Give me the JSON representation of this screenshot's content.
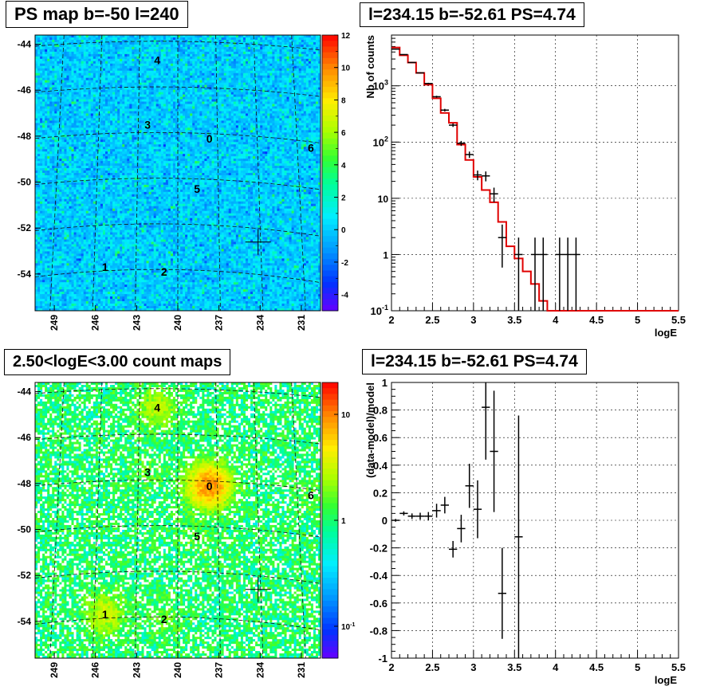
{
  "chart_data": [
    {
      "id": "ps_map",
      "type": "heatmap",
      "title": "PS map b=-50 l=240",
      "y_ticks": [
        -44,
        -46,
        -48,
        -50,
        -52,
        -54
      ],
      "x_ticks": [
        249,
        246,
        243,
        240,
        237,
        234,
        231
      ],
      "colorbar": {
        "scale": "linear",
        "range": [
          -5,
          12
        ],
        "ticks": [
          12,
          10,
          8,
          6,
          4,
          2,
          0,
          -2,
          -4
        ]
      },
      "sources": [
        {
          "label": "4",
          "l": 241.5,
          "b": -44.7
        },
        {
          "label": "3",
          "l": 242.2,
          "b": -47.5
        },
        {
          "label": "0",
          "l": 237.7,
          "b": -48.1
        },
        {
          "label": "6",
          "l": 230.3,
          "b": -48.5
        },
        {
          "label": "5",
          "l": 238.6,
          "b": -50.3
        },
        {
          "label": "1",
          "l": 245.3,
          "b": -53.7
        },
        {
          "label": "2",
          "l": 241.0,
          "b": -53.9
        }
      ],
      "marker": {
        "l": 234.15,
        "b": -52.61
      }
    },
    {
      "id": "spectrum",
      "type": "line",
      "title": "l=234.15 b=-52.61 PS=4.74",
      "xlabel": "logE",
      "ylabel": "Nb of counts",
      "yscale": "log",
      "xlim": [
        2,
        5.5
      ],
      "ylim": [
        0.1,
        8000
      ],
      "x_ticks": [
        2,
        2.5,
        3,
        3.5,
        4,
        4.5,
        5,
        5.5
      ],
      "y_ticks": [
        {
          "v": 0.1,
          "label": "10^-1"
        },
        {
          "v": 1,
          "label": "1"
        },
        {
          "v": 10,
          "label": "10"
        },
        {
          "v": 100,
          "label": "10^2"
        },
        {
          "v": 1000,
          "label": "10^3"
        }
      ],
      "data_points": [
        {
          "x": 2.05,
          "y": 4500
        },
        {
          "x": 2.15,
          "y": 3600
        },
        {
          "x": 2.25,
          "y": 2600
        },
        {
          "x": 2.35,
          "y": 1700
        },
        {
          "x": 2.45,
          "y": 1100
        },
        {
          "x": 2.55,
          "y": 640
        },
        {
          "x": 2.65,
          "y": 370
        },
        {
          "x": 2.75,
          "y": 200
        },
        {
          "x": 2.85,
          "y": 95
        },
        {
          "x": 2.95,
          "y": 60
        },
        {
          "x": 3.05,
          "y": 26
        },
        {
          "x": 3.15,
          "y": 25
        },
        {
          "x": 3.25,
          "y": 12
        },
        {
          "x": 3.35,
          "y": 2
        },
        {
          "x": 3.55,
          "y": 1
        },
        {
          "x": 3.75,
          "y": 1
        },
        {
          "x": 3.85,
          "y": 1
        },
        {
          "x": 4.05,
          "y": 1
        },
        {
          "x": 4.15,
          "y": 1
        },
        {
          "x": 4.25,
          "y": 1
        }
      ],
      "model_steps": [
        {
          "x0": 2.0,
          "x1": 2.1,
          "y": 4800
        },
        {
          "x0": 2.1,
          "x1": 2.2,
          "y": 3500
        },
        {
          "x0": 2.2,
          "x1": 2.3,
          "y": 2600
        },
        {
          "x0": 2.3,
          "x1": 2.4,
          "y": 1700
        },
        {
          "x0": 2.4,
          "x1": 2.5,
          "y": 1050
        },
        {
          "x0": 2.5,
          "x1": 2.6,
          "y": 600
        },
        {
          "x0": 2.6,
          "x1": 2.7,
          "y": 330
        },
        {
          "x0": 2.7,
          "x1": 2.8,
          "y": 220
        },
        {
          "x0": 2.8,
          "x1": 2.9,
          "y": 90
        },
        {
          "x0": 2.9,
          "x1": 3.0,
          "y": 48
        },
        {
          "x0": 3.0,
          "x1": 3.1,
          "y": 24
        },
        {
          "x0": 3.1,
          "x1": 3.2,
          "y": 14
        },
        {
          "x0": 3.2,
          "x1": 3.3,
          "y": 8.5
        },
        {
          "x0": 3.3,
          "x1": 3.4,
          "y": 3.8
        },
        {
          "x0": 3.4,
          "x1": 3.5,
          "y": 1.4
        },
        {
          "x0": 3.5,
          "x1": 3.6,
          "y": 0.85
        },
        {
          "x0": 3.6,
          "x1": 3.7,
          "y": 0.5
        },
        {
          "x0": 3.7,
          "x1": 3.8,
          "y": 0.3
        },
        {
          "x0": 3.8,
          "x1": 3.9,
          "y": 0.15
        },
        {
          "x0": 3.9,
          "x1": 5.5,
          "y": 0.1
        }
      ]
    },
    {
      "id": "count_map",
      "type": "heatmap",
      "title": "2.50<logE<3.00 count maps",
      "y_ticks": [
        -44,
        -46,
        -48,
        -50,
        -52,
        -54
      ],
      "x_ticks": [
        249,
        246,
        243,
        240,
        237,
        234,
        231
      ],
      "colorbar": {
        "scale": "log",
        "range": [
          0.05,
          20
        ],
        "ticks": [
          {
            "v": 10,
            "label": "10"
          },
          {
            "v": 1,
            "label": "1"
          },
          {
            "v": 0.1,
            "label": "10^-1"
          }
        ]
      },
      "sources": [
        {
          "label": "4",
          "l": 241.5,
          "b": -44.7
        },
        {
          "label": "3",
          "l": 242.2,
          "b": -47.5
        },
        {
          "label": "0",
          "l": 237.7,
          "b": -48.1
        },
        {
          "label": "6",
          "l": 230.3,
          "b": -48.5
        },
        {
          "label": "5",
          "l": 238.6,
          "b": -50.3
        },
        {
          "label": "1",
          "l": 245.3,
          "b": -53.7
        },
        {
          "label": "2",
          "l": 241.0,
          "b": -53.9
        }
      ],
      "marker": {
        "l": 234.15,
        "b": -52.61
      }
    },
    {
      "id": "residuals",
      "type": "scatter",
      "title": "l=234.15 b=-52.61 PS=4.74",
      "xlabel": "logE",
      "ylabel": "(data-model)/model",
      "xlim": [
        2,
        5.5
      ],
      "ylim": [
        -1,
        1
      ],
      "x_ticks": [
        2,
        2.5,
        3,
        3.5,
        4,
        4.5,
        5,
        5.5
      ],
      "y_ticks": [
        1,
        0.8,
        0.6,
        0.4,
        0.2,
        0,
        -0.2,
        -0.4,
        -0.6,
        -0.8,
        -1
      ],
      "points": [
        {
          "x": 2.05,
          "y": 0.0,
          "err": 0.01
        },
        {
          "x": 2.15,
          "y": 0.05,
          "err": 0.015
        },
        {
          "x": 2.25,
          "y": 0.03,
          "err": 0.02
        },
        {
          "x": 2.35,
          "y": 0.03,
          "err": 0.025
        },
        {
          "x": 2.45,
          "y": 0.03,
          "err": 0.03
        },
        {
          "x": 2.55,
          "y": 0.07,
          "err": 0.05
        },
        {
          "x": 2.65,
          "y": 0.11,
          "err": 0.06
        },
        {
          "x": 2.75,
          "y": -0.21,
          "err": 0.06
        },
        {
          "x": 2.85,
          "y": -0.06,
          "err": 0.1
        },
        {
          "x": 2.95,
          "y": 0.25,
          "err": 0.16
        },
        {
          "x": 3.05,
          "y": 0.08,
          "err": 0.21
        },
        {
          "x": 3.15,
          "y": 0.82,
          "err": 0.38
        },
        {
          "x": 3.25,
          "y": 0.5,
          "err": 0.44
        },
        {
          "x": 3.35,
          "y": -0.53,
          "err": 0.33
        },
        {
          "x": 3.55,
          "y": -0.12,
          "err": 0.88
        }
      ]
    }
  ]
}
